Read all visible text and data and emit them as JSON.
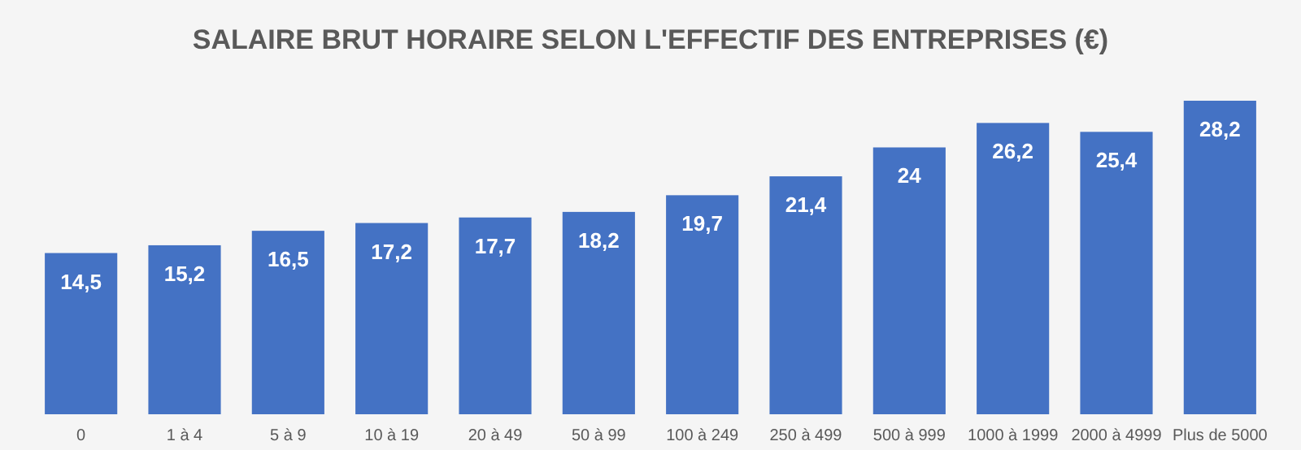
{
  "chart_data": {
    "type": "bar",
    "title": "SALAIRE BRUT HORAIRE SELON L'EFFECTIF DES ENTREPRISES (€)",
    "categories": [
      "0",
      "1 à 4",
      "5 à 9",
      "10 à 19",
      "20 à 49",
      "50 à 99",
      "100 à 249",
      "250 à 499",
      "500 à 999",
      "1000 à 1999",
      "2000 à 4999",
      "Plus de 5000"
    ],
    "values": [
      14.5,
      15.2,
      16.5,
      17.2,
      17.7,
      18.2,
      19.7,
      21.4,
      24,
      26.2,
      25.4,
      28.2
    ],
    "value_labels": [
      "14,5",
      "15,2",
      "16,5",
      "17,2",
      "17,7",
      "18,2",
      "19,7",
      "21,4",
      "24",
      "26,2",
      "25,4",
      "28,2"
    ],
    "color": "#4472c4"
  }
}
